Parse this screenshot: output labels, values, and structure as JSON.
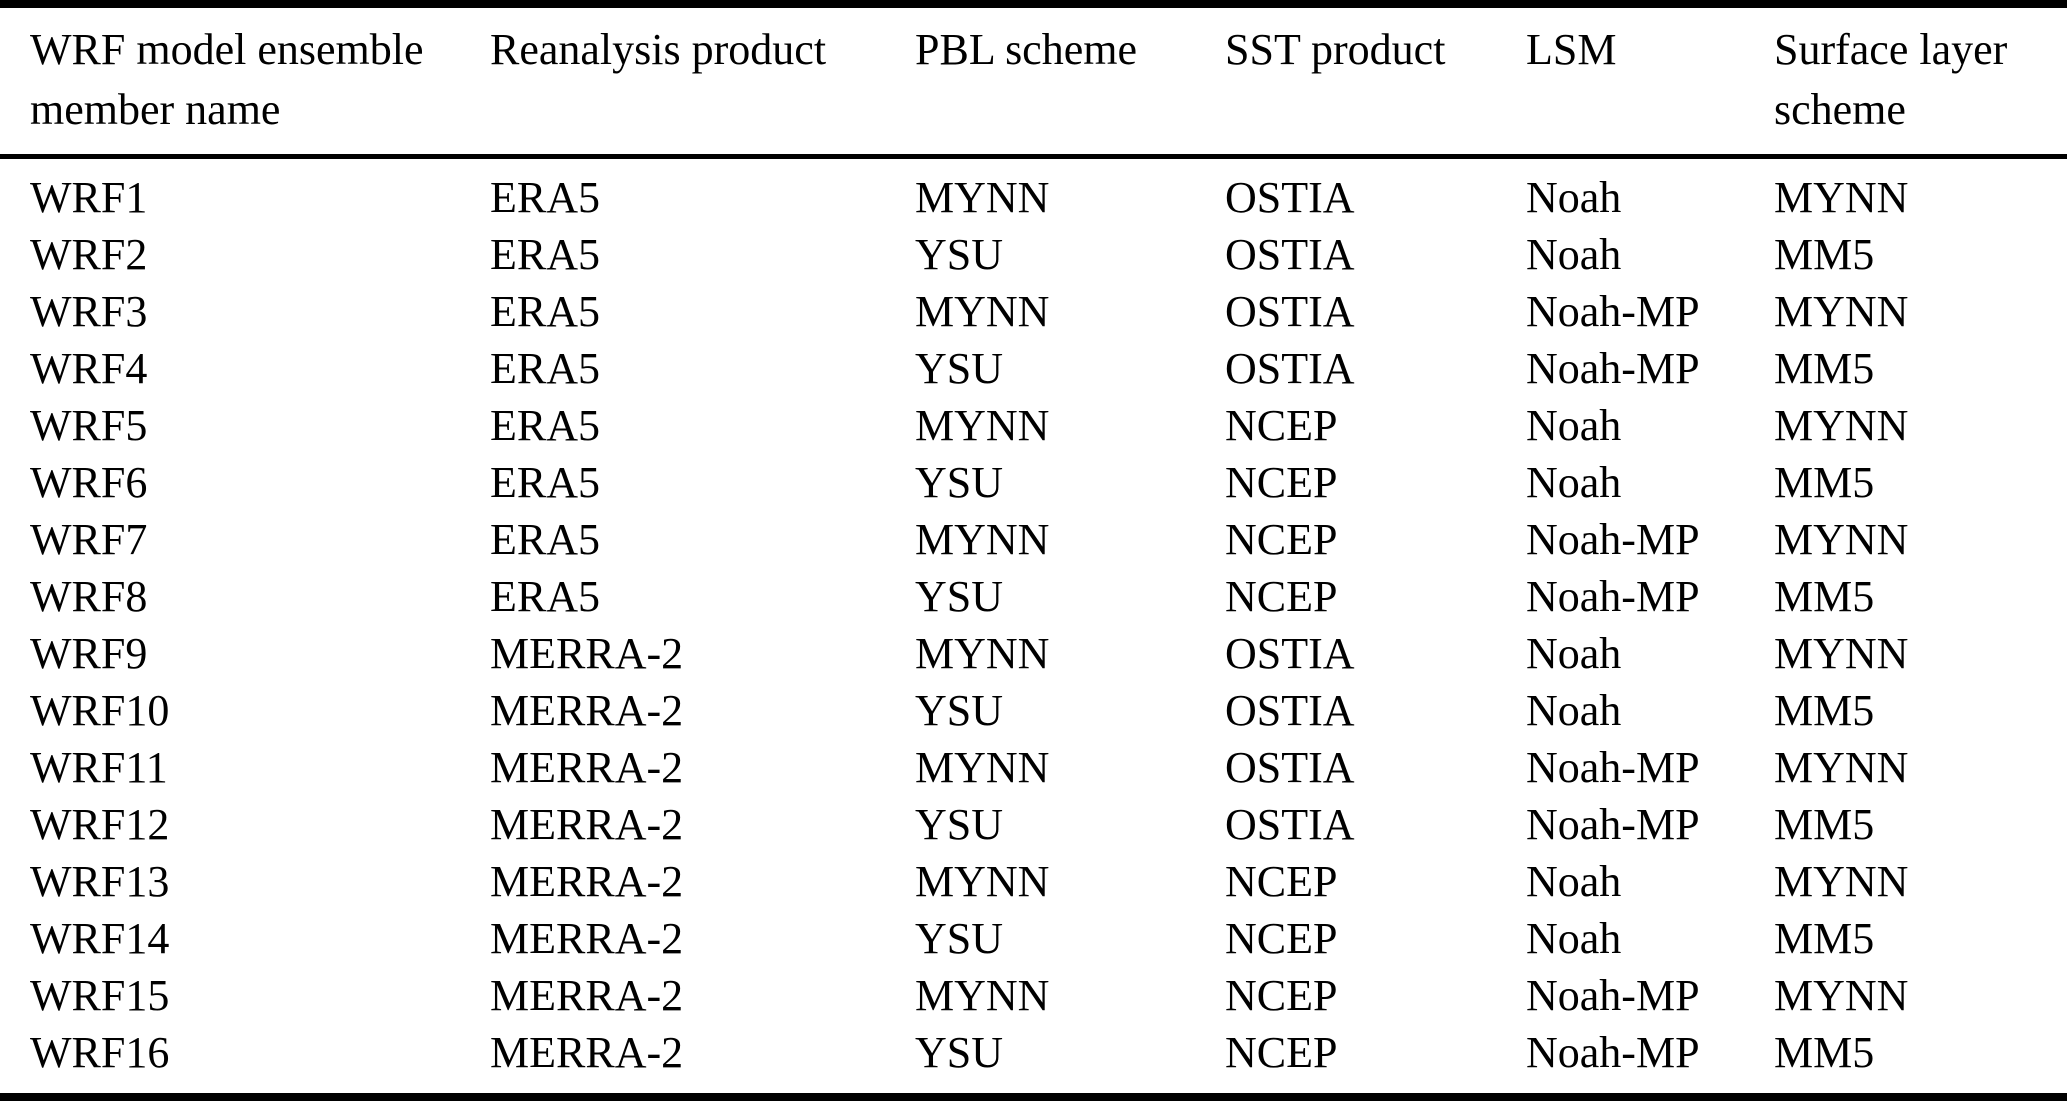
{
  "table": {
    "columns": [
      "WRF model ensemble member name",
      "Reanalysis product",
      "PBL scheme",
      "SST product",
      "LSM",
      "Surface layer scheme"
    ],
    "rows": [
      [
        "WRF1",
        "ERA5",
        "MYNN",
        "OSTIA",
        "Noah",
        "MYNN"
      ],
      [
        "WRF2",
        "ERA5",
        "YSU",
        "OSTIA",
        "Noah",
        "MM5"
      ],
      [
        "WRF3",
        "ERA5",
        "MYNN",
        "OSTIA",
        "Noah-MP",
        "MYNN"
      ],
      [
        "WRF4",
        "ERA5",
        "YSU",
        "OSTIA",
        "Noah-MP",
        "MM5"
      ],
      [
        "WRF5",
        "ERA5",
        "MYNN",
        "NCEP",
        "Noah",
        "MYNN"
      ],
      [
        "WRF6",
        "ERA5",
        "YSU",
        "NCEP",
        "Noah",
        "MM5"
      ],
      [
        "WRF7",
        "ERA5",
        "MYNN",
        "NCEP",
        "Noah-MP",
        "MYNN"
      ],
      [
        "WRF8",
        "ERA5",
        "YSU",
        "NCEP",
        "Noah-MP",
        "MM5"
      ],
      [
        "WRF9",
        "MERRA-2",
        "MYNN",
        "OSTIA",
        "Noah",
        "MYNN"
      ],
      [
        "WRF10",
        "MERRA-2",
        "YSU",
        "OSTIA",
        "Noah",
        "MM5"
      ],
      [
        "WRF11",
        "MERRA-2",
        "MYNN",
        "OSTIA",
        "Noah-MP",
        "MYNN"
      ],
      [
        "WRF12",
        "MERRA-2",
        "YSU",
        "OSTIA",
        "Noah-MP",
        "MM5"
      ],
      [
        "WRF13",
        "MERRA-2",
        "MYNN",
        "NCEP",
        "Noah",
        "MYNN"
      ],
      [
        "WRF14",
        "MERRA-2",
        "YSU",
        "NCEP",
        "Noah",
        "MM5"
      ],
      [
        "WRF15",
        "MERRA-2",
        "MYNN",
        "NCEP",
        "Noah-MP",
        "MYNN"
      ],
      [
        "WRF16",
        "MERRA-2",
        "YSU",
        "NCEP",
        "Noah-MP",
        "MM5"
      ]
    ],
    "rule_color": "#000000"
  }
}
